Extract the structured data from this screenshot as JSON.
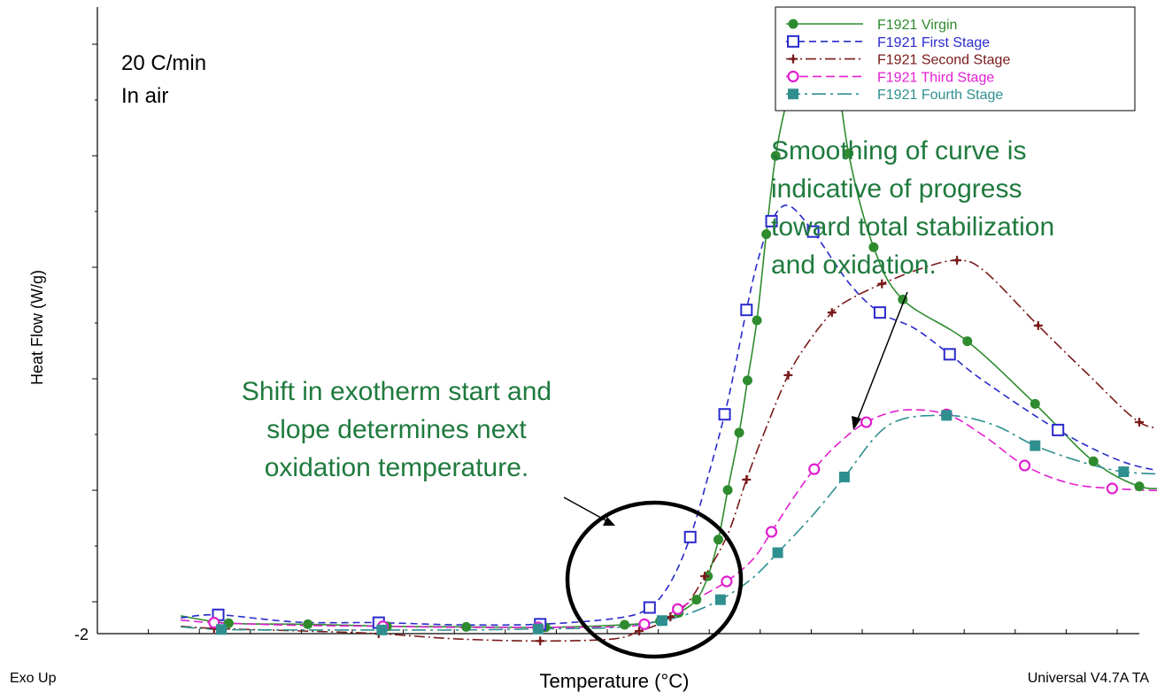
{
  "chart_data": {
    "type": "line",
    "title": "",
    "xlabel": "Temperature (°C)",
    "ylabel": "Heat Flow (W/g)",
    "y_tick_labels": [
      "-2"
    ],
    "xlim": [
      0,
      100
    ],
    "ylim": [
      -2,
      10
    ],
    "grid": false,
    "legend_position": "top-right",
    "conditions": [
      "20 C/min",
      "In air"
    ],
    "footer_left": "Exo Up",
    "footer_right": "Universal V4.7A TA",
    "annotations": [
      {
        "lines": [
          "Smoothing of curve is",
          "indicative of progress",
          "toward total stabilization",
          "and oxidation."
        ]
      },
      {
        "lines": [
          "Shift in exotherm start and",
          "slope determines next",
          "oxidation temperature."
        ]
      }
    ],
    "series": [
      {
        "name": "F1921 Virgin",
        "color": "#2e8b2e",
        "dash": "",
        "marker": "dot",
        "x": [
          8.0,
          12.6,
          20.2,
          27.8,
          35.4,
          43.0,
          50.6,
          54.0,
          55.8,
          57.5,
          58.6,
          59.6,
          60.5,
          61.6,
          62.4,
          63.3,
          64.2,
          65.1,
          66.3,
          67.5,
          68.4,
          69.5,
          70.5,
          72.1,
          74.5,
          77.3,
          83.5,
          90.0,
          95.6,
          100.0,
          103.0
        ],
        "y": [
          -1.66,
          -1.8,
          -1.82,
          -1.86,
          -1.87,
          -1.88,
          -1.83,
          -1.76,
          -1.6,
          -1.35,
          -0.9,
          -0.2,
          0.75,
          1.85,
          2.85,
          4.0,
          5.65,
          7.15,
          8.3,
          9.0,
          9.5,
          9.8,
          9.45,
          7.2,
          5.4,
          4.4,
          3.6,
          2.4,
          1.3,
          0.82,
          0.8
        ]
      },
      {
        "name": "F1921 First Stage",
        "color": "#2a2acc",
        "dash": "8,5",
        "marker": "square",
        "x": [
          8.0,
          11.6,
          19.2,
          27.0,
          34.5,
          42.5,
          50.0,
          53.0,
          55.0,
          56.9,
          58.6,
          60.2,
          61.2,
          62.3,
          63.4,
          64.7,
          66.3,
          68.7,
          72.2,
          75.1,
          78.4,
          81.8,
          85.0,
          92.2,
          98.3,
          103.0
        ],
        "y": [
          -1.7,
          -1.64,
          -1.78,
          -1.79,
          -1.83,
          -1.82,
          -1.7,
          -1.5,
          -1.02,
          -0.15,
          1.0,
          2.2,
          3.1,
          4.2,
          5.15,
          5.9,
          6.2,
          5.7,
          4.7,
          4.15,
          3.85,
          3.35,
          2.85,
          1.9,
          1.3,
          1.08
        ]
      },
      {
        "name": "F1921 Second Stage",
        "color": "#7a1a1a",
        "dash": "12,4,2,4",
        "marker": "plus",
        "x": [
          8.0,
          11.2,
          19.6,
          27.0,
          34.4,
          42.5,
          49.6,
          52.0,
          53.5,
          55.0,
          56.7,
          58.3,
          60.5,
          62.3,
          64.0,
          66.3,
          68.3,
          70.5,
          72.2,
          75.3,
          79.2,
          82.5,
          85.1,
          90.3,
          94.9,
          100.0,
          103.0
        ],
        "y": [
          -1.86,
          -1.9,
          -1.95,
          -2.0,
          -2.1,
          -2.14,
          -2.1,
          -1.95,
          -1.85,
          -1.68,
          -1.4,
          -0.9,
          -0.1,
          0.95,
          1.85,
          2.95,
          3.6,
          4.15,
          4.4,
          4.7,
          5.0,
          5.15,
          4.95,
          3.9,
          3.0,
          2.05,
          1.95
        ]
      },
      {
        "name": "F1921 Third Stage",
        "color": "#e020d0",
        "dash": "10,5",
        "marker": "circle",
        "x": [
          8.0,
          11.2,
          19.2,
          27.4,
          34.6,
          42.3,
          49.8,
          52.5,
          54.0,
          55.7,
          57.8,
          60.4,
          62.9,
          64.7,
          66.7,
          68.8,
          71.0,
          73.8,
          77.3,
          81.5,
          85.0,
          89.0,
          93.3,
          97.4,
          103.0
        ],
        "y": [
          -1.74,
          -1.79,
          -1.84,
          -1.86,
          -1.88,
          -1.88,
          -1.87,
          -1.82,
          -1.72,
          -1.53,
          -1.3,
          -1.0,
          -0.58,
          -0.05,
          0.57,
          1.15,
          1.62,
          2.05,
          2.28,
          2.2,
          1.8,
          1.22,
          0.88,
          0.78,
          0.73
        ]
      },
      {
        "name": "F1921 Fourth Stage",
        "color": "#2f8f8f",
        "dash": "16,5,3,5",
        "marker": "filled-square",
        "x": [
          8.0,
          11.9,
          19.6,
          27.3,
          34.8,
          42.3,
          49.8,
          54.2,
          56.7,
          59.8,
          62.8,
          65.3,
          68.8,
          71.7,
          76.0,
          81.5,
          86.0,
          90.0,
          94.6,
          98.5,
          103.0
        ],
        "y": [
          -1.87,
          -1.92,
          -1.93,
          -1.93,
          -1.93,
          -1.91,
          -1.88,
          -1.75,
          -1.62,
          -1.35,
          -0.95,
          -0.45,
          0.3,
          1.0,
          2.0,
          2.18,
          2.0,
          1.6,
          1.28,
          1.1,
          1.05
        ]
      }
    ]
  }
}
